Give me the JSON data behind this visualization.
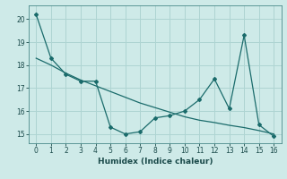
{
  "title": "",
  "xlabel": "Humidex (Indice chaleur)",
  "ylabel": "",
  "background_color": "#ceeae8",
  "grid_color": "#aed4d2",
  "line_color": "#1a6b6b",
  "x_main": [
    0,
    1,
    2,
    3,
    4,
    5,
    6,
    7,
    8,
    9,
    10,
    11,
    12,
    13,
    14,
    15,
    16
  ],
  "y_main": [
    20.2,
    18.3,
    17.6,
    17.3,
    17.3,
    15.3,
    15.0,
    15.1,
    15.7,
    15.8,
    16.0,
    16.5,
    17.4,
    16.1,
    19.3,
    15.4,
    14.9
  ],
  "x_trend": [
    0,
    1,
    2,
    3,
    4,
    5,
    6,
    7,
    8,
    9,
    10,
    11,
    12,
    13,
    14,
    15,
    16
  ],
  "y_trend": [
    18.3,
    18.0,
    17.65,
    17.35,
    17.1,
    16.85,
    16.6,
    16.35,
    16.15,
    15.95,
    15.75,
    15.6,
    15.5,
    15.38,
    15.28,
    15.15,
    15.0
  ],
  "ylim": [
    14.6,
    20.6
  ],
  "xlim": [
    -0.5,
    16.5
  ],
  "yticks": [
    15,
    16,
    17,
    18,
    19,
    20
  ],
  "xticks": [
    0,
    1,
    2,
    3,
    4,
    5,
    6,
    7,
    8,
    9,
    10,
    11,
    12,
    13,
    14,
    15,
    16
  ]
}
